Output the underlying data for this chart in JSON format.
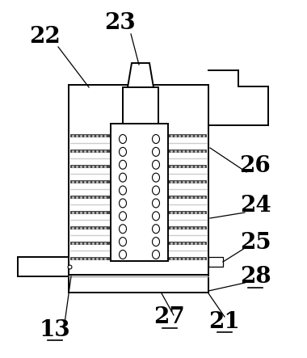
{
  "bg_color": "#ffffff",
  "line_color": "#000000",
  "label_color": "#000000",
  "label_fontsize": 20,
  "underlined_labels": [
    "27",
    "21",
    "28",
    "13"
  ],
  "lw_main": 1.4,
  "lw_thin": 0.9
}
